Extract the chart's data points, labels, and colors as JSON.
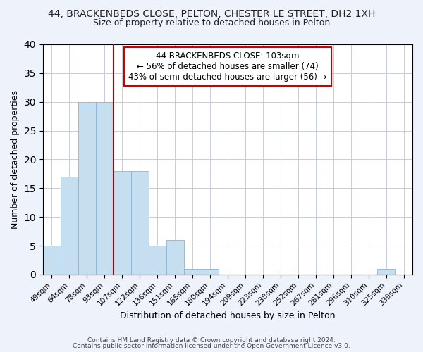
{
  "title_line1": "44, BRACKENBEDS CLOSE, PELTON, CHESTER LE STREET, DH2 1XH",
  "title_line2": "Size of property relative to detached houses in Pelton",
  "xlabel": "Distribution of detached houses by size in Pelton",
  "ylabel": "Number of detached properties",
  "bar_labels": [
    "49sqm",
    "64sqm",
    "78sqm",
    "93sqm",
    "107sqm",
    "122sqm",
    "136sqm",
    "151sqm",
    "165sqm",
    "180sqm",
    "194sqm",
    "209sqm",
    "223sqm",
    "238sqm",
    "252sqm",
    "267sqm",
    "281sqm",
    "296sqm",
    "310sqm",
    "325sqm",
    "339sqm"
  ],
  "bar_values": [
    5,
    17,
    30,
    30,
    18,
    18,
    5,
    6,
    1,
    1,
    0,
    0,
    0,
    0,
    0,
    0,
    0,
    0,
    0,
    1,
    0
  ],
  "bar_color": "#c5dff0",
  "bar_edge_color": "#8ab4d4",
  "vline_color": "#aa0000",
  "annotation_line1": "44 BRACKENBEDS CLOSE: 103sqm",
  "annotation_line2": "← 56% of detached houses are smaller (74)",
  "annotation_line3": "43% of semi-detached houses are larger (56) →",
  "ylim": [
    0,
    40
  ],
  "yticks": [
    0,
    5,
    10,
    15,
    20,
    25,
    30,
    35,
    40
  ],
  "footer_line1": "Contains HM Land Registry data © Crown copyright and database right 2024.",
  "footer_line2": "Contains public sector information licensed under the Open Government Licence v3.0.",
  "bg_color": "#eef2fb",
  "plot_bg_color": "#ffffff",
  "grid_color": "#c5cce0"
}
